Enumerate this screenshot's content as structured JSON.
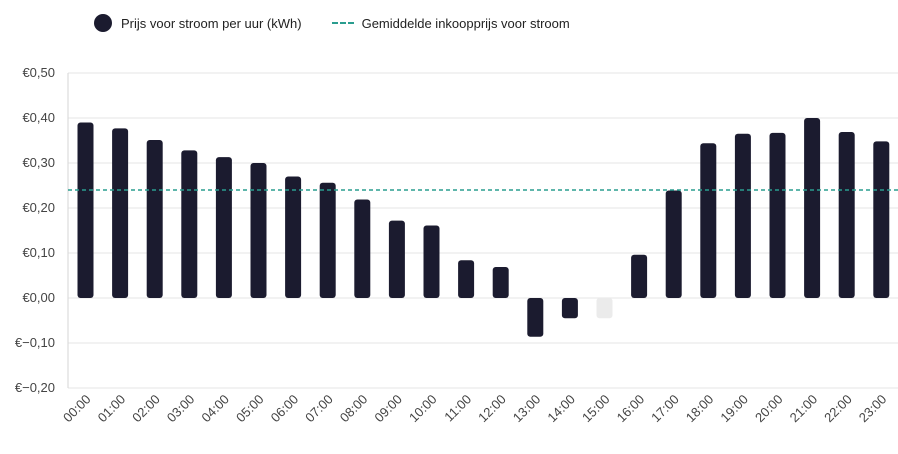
{
  "legend": {
    "bars_label": "Prijs voor stroom per uur (kWh)",
    "line_label": "Gemiddelde inkoopprijs voor stroom"
  },
  "colors": {
    "bar": "#1b1b2f",
    "bar_light": "#ebebeb",
    "average_line": "#2a9d8f",
    "grid": "#e6e6e6"
  },
  "chart_data": {
    "type": "bar",
    "categories": [
      "00:00",
      "01:00",
      "02:00",
      "03:00",
      "04:00",
      "05:00",
      "06:00",
      "07:00",
      "08:00",
      "09:00",
      "10:00",
      "11:00",
      "12:00",
      "13:00",
      "14:00",
      "15:00",
      "16:00",
      "17:00",
      "18:00",
      "19:00",
      "20:00",
      "21:00",
      "22:00",
      "23:00"
    ],
    "values": [
      0.39,
      0.377,
      0.351,
      0.328,
      0.313,
      0.3,
      0.27,
      0.256,
      0.219,
      0.172,
      0.161,
      0.084,
      0.069,
      -0.086,
      -0.045,
      -0.045,
      0.096,
      0.239,
      0.344,
      0.365,
      0.367,
      0.4,
      0.369,
      0.348
    ],
    "highlighted_light": [
      "15:00"
    ],
    "average": 0.24,
    "ylim": [
      -0.2,
      0.5
    ],
    "yticks": [
      -0.2,
      -0.1,
      0,
      0.1,
      0.2,
      0.3,
      0.4,
      0.5
    ],
    "ytick_labels": [
      "€−0,20",
      "€−0,10",
      "€0,00",
      "€0,10",
      "€0,20",
      "€0,30",
      "€0,40",
      "€0,50"
    ],
    "grid": true,
    "legend_position": "top-left"
  }
}
